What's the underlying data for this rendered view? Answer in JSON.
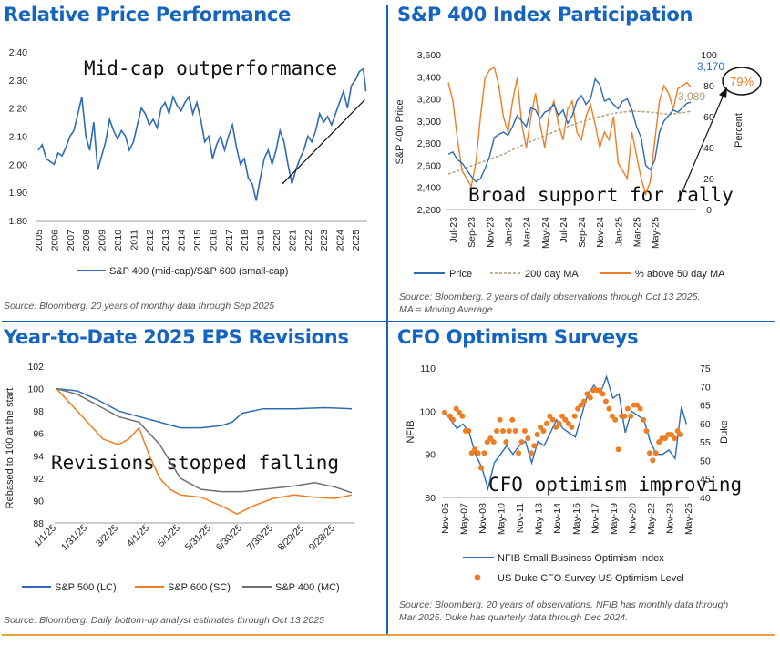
{
  "colors": {
    "title": "#1565c0",
    "blue": "#2e6bb5",
    "orange": "#ef7d22",
    "gray": "#707070",
    "ma": "#b09a72",
    "circle": "#e05a4f"
  },
  "panels": {
    "p1": {
      "title": "Relative Price Performance",
      "annotation": "Mid-cap outperformance",
      "source": "Source: Bloomberg. 20 years of monthly data through Sep 2025",
      "legend": [
        "S&P 400 (mid-cap)/S&P 600 (small-cap)"
      ]
    },
    "p2": {
      "title": "S&P 400 Index Participation",
      "annotation": "Broad support for rally",
      "callout": "79%",
      "label_price": "3,170",
      "label_ma": "3,089",
      "source_line1": "Source: Bloomberg. 2 years of daily observations through Oct 13 2025.",
      "source_line2": "MA = Moving Average",
      "legend": [
        "Price",
        "200 day MA",
        "% above 50 day MA"
      ]
    },
    "p3": {
      "title": "Year-to-Date 2025 EPS Revisions",
      "annotation": "Revisions stopped falling",
      "source": "Source: Bloomberg. Daily bottom-up analyst estimates through Oct 13 2025",
      "legend": [
        "S&P 500 (LC)",
        "S&P 600 (SC)",
        "S&P 400 (MC)"
      ]
    },
    "p4": {
      "title": "CFO Optimism Surveys",
      "annotation": "CFO optimism improving",
      "source_line1": "Source: Bloomberg. 20 years of observations. NFIB has monthly data through",
      "source_line2": "Mar 2025. Duke has quarterly data through Dec 2024.",
      "legend": [
        "NFIB Small Business Optimism Index",
        "US Duke CFO Survey US Optimism Level"
      ]
    }
  },
  "chart_data": [
    {
      "id": "relative-price",
      "type": "line",
      "title": "Relative Price Performance",
      "xlabel": "",
      "ylabel": "",
      "ylim": [
        1.8,
        2.4
      ],
      "yticks": [
        "1.80",
        "1.90",
        "2.00",
        "2.10",
        "2.20",
        "2.30",
        "2.40"
      ],
      "xlim": [
        2005,
        2025.75
      ],
      "xticks": [
        "2005",
        "2006",
        "2007",
        "2008",
        "2009",
        "2010",
        "2011",
        "2012",
        "2013",
        "2014",
        "2015",
        "2016",
        "2017",
        "2018",
        "2019",
        "2020",
        "2021",
        "2022",
        "2023",
        "2024",
        "2025"
      ],
      "series": [
        {
          "name": "S&P 400 (mid-cap)/S&P 600 (small-cap)",
          "x": [
            2005,
            2005.25,
            2005.5,
            2005.75,
            2006,
            2006.25,
            2006.5,
            2006.75,
            2007,
            2007.25,
            2007.5,
            2007.75,
            2008,
            2008.25,
            2008.5,
            2008.75,
            2009,
            2009.25,
            2009.5,
            2009.75,
            2010,
            2010.25,
            2010.5,
            2010.75,
            2011,
            2011.25,
            2011.5,
            2011.75,
            2012,
            2012.25,
            2012.5,
            2012.75,
            2013,
            2013.25,
            2013.5,
            2013.75,
            2014,
            2014.25,
            2014.5,
            2014.75,
            2015,
            2015.25,
            2015.5,
            2015.75,
            2016,
            2016.25,
            2016.5,
            2016.75,
            2017,
            2017.25,
            2017.5,
            2017.75,
            2018,
            2018.25,
            2018.5,
            2018.75,
            2019,
            2019.25,
            2019.5,
            2019.75,
            2020,
            2020.25,
            2020.5,
            2020.75,
            2021,
            2021.25,
            2021.5,
            2021.75,
            2022,
            2022.25,
            2022.5,
            2022.75,
            2023,
            2023.25,
            2023.5,
            2023.75,
            2024,
            2024.25,
            2024.5,
            2024.75,
            2025,
            2025.25,
            2025.5,
            2025.67
          ],
          "values": [
            2.05,
            2.07,
            2.02,
            2.01,
            2.0,
            2.04,
            2.03,
            2.06,
            2.1,
            2.12,
            2.18,
            2.24,
            2.1,
            2.05,
            2.15,
            1.98,
            2.03,
            2.08,
            2.16,
            2.12,
            2.09,
            2.12,
            2.1,
            2.05,
            2.08,
            2.14,
            2.2,
            2.18,
            2.14,
            2.16,
            2.13,
            2.2,
            2.22,
            2.18,
            2.24,
            2.21,
            2.19,
            2.22,
            2.24,
            2.18,
            2.22,
            2.16,
            2.08,
            2.1,
            2.02,
            2.07,
            2.1,
            2.05,
            2.1,
            2.14,
            2.06,
            2.0,
            2.02,
            1.95,
            1.93,
            1.87,
            1.95,
            2.02,
            2.05,
            2.0,
            2.05,
            2.12,
            2.08,
            2.0,
            1.93,
            1.98,
            2.02,
            2.05,
            2.1,
            2.08,
            2.12,
            2.18,
            2.15,
            2.17,
            2.14,
            2.18,
            2.22,
            2.26,
            2.2,
            2.28,
            2.3,
            2.33,
            2.34,
            2.26
          ]
        }
      ],
      "trendline": {
        "from": [
          2020.4,
          1.93
        ],
        "to": [
          2025.6,
          2.23
        ]
      }
    },
    {
      "id": "participation",
      "type": "line",
      "title": "S&P 400 Index Participation",
      "ylabel": "S&P 400 Price",
      "y2label": "Percent",
      "ylim": [
        2200,
        3600
      ],
      "y2lim": [
        0,
        100
      ],
      "yticks": [
        "2,200",
        "2,400",
        "2,600",
        "2,800",
        "3,000",
        "3,200",
        "3,400",
        "3,600"
      ],
      "y2ticks": [
        "0",
        "20",
        "40",
        "60",
        "80",
        "100"
      ],
      "xlim": [
        0,
        27
      ],
      "xticks": [
        "Jul-23",
        "Sep-23",
        "Nov-23",
        "Jan-24",
        "Mar-24",
        "May-24",
        "Jul-24",
        "Sep-24",
        "Nov-24",
        "Jan-25",
        "Mar-25",
        "May-25"
      ],
      "series": [
        {
          "name": "Price",
          "axis": "left",
          "x": [
            0,
            0.5,
            1,
            1.5,
            2,
            2.5,
            3,
            3.5,
            4,
            4.5,
            5,
            5.5,
            6,
            6.5,
            7,
            7.5,
            8,
            8.5,
            9,
            9.5,
            10,
            10.5,
            11,
            11.5,
            12,
            12.5,
            13,
            13.5,
            14,
            14.5,
            15,
            15.5,
            16,
            16.5,
            17,
            17.5,
            18,
            18.5,
            19,
            19.5,
            20,
            20.5,
            21,
            21.5,
            22,
            22.5,
            23,
            23.5,
            24,
            24.5,
            25,
            25.5,
            26,
            26.4
          ],
          "values": [
            2700,
            2720,
            2650,
            2620,
            2560,
            2500,
            2450,
            2480,
            2570,
            2680,
            2850,
            2880,
            2900,
            2870,
            2950,
            3050,
            3000,
            2950,
            3120,
            3100,
            3020,
            3080,
            3100,
            3150,
            3050,
            3100,
            2980,
            3050,
            3180,
            3230,
            3150,
            3200,
            3380,
            3330,
            3180,
            3200,
            3150,
            3110,
            3180,
            3200,
            3100,
            2950,
            2850,
            2600,
            2560,
            2650,
            2900,
            3000,
            3050,
            3100,
            3080,
            3120,
            3160,
            3170
          ]
        },
        {
          "name": "200 day MA",
          "axis": "left",
          "x": [
            0,
            2,
            4,
            6,
            8,
            10,
            12,
            14,
            16,
            18,
            20,
            22,
            24,
            26,
            26.4
          ],
          "values": [
            2520,
            2580,
            2640,
            2700,
            2780,
            2850,
            2920,
            2980,
            3030,
            3070,
            3090,
            3080,
            3060,
            3080,
            3089
          ]
        },
        {
          "name": "% above 50 day MA",
          "axis": "right",
          "x": [
            0,
            0.5,
            1,
            1.5,
            2,
            2.5,
            3,
            3.5,
            4,
            4.5,
            5,
            5.5,
            6,
            6.5,
            7,
            7.5,
            8,
            8.5,
            9,
            9.5,
            10,
            10.5,
            11,
            11.5,
            12,
            12.5,
            13,
            13.5,
            14,
            14.5,
            15,
            15.5,
            16,
            16.5,
            17,
            17.5,
            18,
            18.5,
            19,
            19.5,
            20,
            20.5,
            21,
            21.5,
            22,
            22.5,
            23,
            23.5,
            24,
            24.5,
            25,
            25.5,
            26,
            26.4
          ],
          "values": [
            82,
            70,
            45,
            25,
            20,
            15,
            30,
            60,
            85,
            90,
            92,
            80,
            60,
            50,
            70,
            85,
            55,
            40,
            60,
            75,
            55,
            40,
            62,
            70,
            55,
            45,
            65,
            70,
            50,
            45,
            60,
            68,
            55,
            40,
            50,
            45,
            60,
            30,
            25,
            20,
            50,
            35,
            20,
            10,
            18,
            45,
            70,
            80,
            75,
            65,
            78,
            80,
            82,
            79
          ]
        }
      ]
    },
    {
      "id": "eps-revisions",
      "type": "line",
      "title": "Year-to-Date 2025 EPS Revisions",
      "ylabel": "Rebased to 100 at the start",
      "ylim": [
        88,
        102
      ],
      "yticks": [
        "88",
        "90",
        "92",
        "94",
        "96",
        "98",
        "100",
        "102"
      ],
      "xlim": [
        0,
        286
      ],
      "xticks": [
        "1/1/25",
        "1/31/25",
        "3/2/25",
        "4/1/25",
        "5/1/25",
        "5/31/25",
        "6/30/25",
        "7/30/25",
        "8/29/25",
        "9/28/25"
      ],
      "series": [
        {
          "name": "S&P 500 (LC)",
          "x": [
            0,
            20,
            40,
            60,
            80,
            100,
            120,
            140,
            160,
            170,
            180,
            200,
            230,
            260,
            286
          ],
          "values": [
            100,
            99.8,
            99.0,
            98.0,
            97.5,
            97.0,
            96.5,
            96.5,
            96.7,
            97.0,
            97.8,
            98.2,
            98.2,
            98.3,
            98.2
          ]
        },
        {
          "name": "S&P 600 (SC)",
          "x": [
            0,
            15,
            30,
            45,
            60,
            70,
            80,
            90,
            100,
            110,
            120,
            140,
            160,
            175,
            190,
            210,
            230,
            250,
            270,
            286
          ],
          "values": [
            100,
            98.5,
            97.0,
            95.5,
            95.0,
            95.5,
            96.5,
            94.0,
            92.0,
            91.0,
            90.5,
            90.3,
            89.5,
            88.8,
            89.5,
            90.2,
            90.5,
            90.3,
            90.2,
            90.5
          ]
        },
        {
          "name": "S&P 400 (MC)",
          "x": [
            0,
            20,
            40,
            60,
            80,
            100,
            110,
            120,
            140,
            160,
            180,
            200,
            230,
            250,
            270,
            286
          ],
          "values": [
            100,
            99.5,
            98.5,
            97.5,
            97.0,
            95.0,
            93.5,
            92.0,
            91.0,
            90.8,
            90.8,
            91.0,
            91.3,
            91.6,
            91.2,
            90.7
          ]
        }
      ]
    },
    {
      "id": "cfo-optimism",
      "type": "line",
      "title": "CFO Optimism Surveys",
      "ylabel": "NFIB",
      "y2label": "Duke",
      "ylim": [
        80,
        110
      ],
      "y2lim": [
        40,
        75
      ],
      "yticks": [
        "80",
        "90",
        "100",
        "110"
      ],
      "y2ticks": [
        "40",
        "45",
        "50",
        "55",
        "60",
        "65",
        "70",
        "75"
      ],
      "xlim": [
        2005.83,
        2025.4
      ],
      "xticks": [
        "Nov-05",
        "May-07",
        "Nov-08",
        "May-10",
        "Nov-11",
        "May-13",
        "Nov-14",
        "May-16",
        "Nov-17",
        "May-19",
        "Nov-20",
        "May-22",
        "Nov-23",
        "May-25"
      ],
      "series": [
        {
          "name": "NFIB Small Business Optimism Index",
          "axis": "left",
          "x": [
            2005.83,
            2006.3,
            2006.8,
            2007.3,
            2007.8,
            2008.3,
            2008.8,
            2009.3,
            2009.8,
            2010.3,
            2010.8,
            2011.3,
            2011.8,
            2012.3,
            2012.8,
            2013.3,
            2013.8,
            2014.3,
            2014.8,
            2015.3,
            2015.8,
            2016.3,
            2016.8,
            2017.3,
            2017.8,
            2018.3,
            2018.8,
            2019.3,
            2019.8,
            2020.3,
            2020.8,
            2021.3,
            2021.8,
            2022.3,
            2022.8,
            2023.3,
            2023.8,
            2024.3,
            2024.8,
            2025.2
          ],
          "values": [
            100,
            98,
            96,
            97,
            95,
            90,
            87,
            82,
            88,
            90,
            92,
            90,
            92,
            93,
            88,
            93,
            92,
            95,
            98,
            96,
            95,
            94,
            99,
            104,
            106,
            104,
            108,
            103,
            104,
            95,
            100,
            99,
            98,
            93,
            90,
            90,
            91,
            89,
            101,
            97
          ]
        },
        {
          "name": "US Duke CFO Survey US Optimism Level",
          "axis": "right",
          "type": "scatter",
          "x": [
            2005.83,
            2006.25,
            2006.5,
            2006.75,
            2007,
            2007.25,
            2007.5,
            2007.75,
            2008,
            2008.25,
            2008.5,
            2008.75,
            2009,
            2009.25,
            2009.5,
            2009.75,
            2010,
            2010.25,
            2010.5,
            2010.75,
            2011,
            2011.25,
            2011.5,
            2011.75,
            2012,
            2012.25,
            2012.5,
            2012.75,
            2013,
            2013.25,
            2013.5,
            2013.75,
            2014,
            2014.25,
            2014.5,
            2014.75,
            2015,
            2015.25,
            2015.5,
            2015.75,
            2016,
            2016.25,
            2016.5,
            2016.75,
            2017,
            2017.25,
            2017.5,
            2017.75,
            2018,
            2018.25,
            2018.5,
            2018.75,
            2019,
            2019.25,
            2019.5,
            2019.75,
            2020,
            2020.25,
            2020.5,
            2020.75,
            2021,
            2021.25,
            2021.5,
            2021.75,
            2022,
            2022.25,
            2022.5,
            2022.75,
            2023,
            2023.25,
            2023.5,
            2023.75,
            2024,
            2024.25,
            2024.5,
            2024.75
          ],
          "values": [
            63,
            62,
            61,
            64,
            63,
            62,
            58,
            58,
            52,
            53,
            52,
            48,
            52,
            55,
            56,
            55,
            58,
            61,
            58,
            55,
            58,
            61,
            58,
            52,
            55,
            58,
            56,
            52,
            54,
            57,
            59,
            58,
            60,
            62,
            61,
            59,
            60,
            62,
            61,
            60,
            59,
            62,
            64,
            65,
            66,
            68,
            67,
            69,
            69,
            69,
            68,
            66,
            64,
            62,
            61,
            53,
            62,
            62,
            64,
            62,
            65,
            65,
            64,
            61,
            58,
            52,
            50,
            52,
            55,
            56,
            56,
            57,
            57,
            56,
            58,
            57
          ]
        }
      ]
    }
  ]
}
